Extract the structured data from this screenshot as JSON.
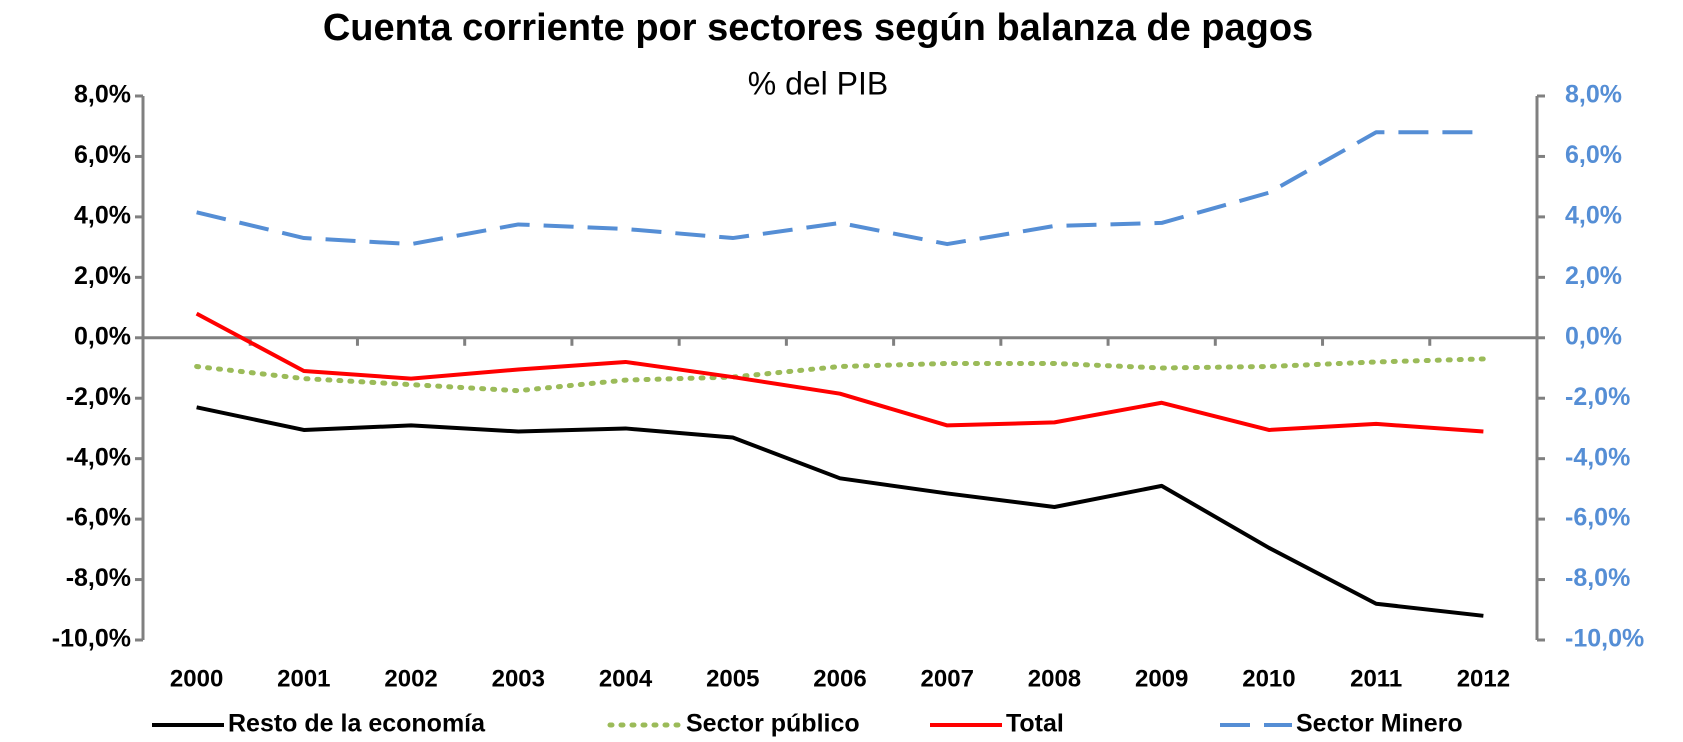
{
  "chart_data": {
    "type": "line",
    "title": "Cuenta corriente por sectores según balanza de pagos",
    "subtitle": "% del PIB",
    "categories": [
      "2000",
      "2001",
      "2002",
      "2003",
      "2004",
      "2005",
      "2006",
      "2007",
      "2008",
      "2009",
      "2010",
      "2011",
      "2012"
    ],
    "series": [
      {
        "name": "Resto de la economía",
        "color": "#000000",
        "dash": "solid",
        "values": [
          -2.3,
          -3.05,
          -2.9,
          -3.1,
          -3.0,
          -3.3,
          -4.65,
          -5.15,
          -5.6,
          -4.9,
          -6.95,
          -8.8,
          -9.2
        ]
      },
      {
        "name": "Sector público",
        "color": "#9BBB59",
        "dash": "dot",
        "values": [
          -0.95,
          -1.35,
          -1.55,
          -1.75,
          -1.4,
          -1.3,
          -0.95,
          -0.85,
          -0.85,
          -1.0,
          -0.95,
          -0.8,
          -0.7
        ]
      },
      {
        "name": "Total",
        "color": "#FF0000",
        "dash": "solid",
        "values": [
          0.8,
          -1.1,
          -1.35,
          -1.05,
          -0.8,
          -1.3,
          -1.85,
          -2.9,
          -2.8,
          -2.15,
          -3.05,
          -2.85,
          -3.1
        ]
      },
      {
        "name": "Sector Minero",
        "color": "#558ED5",
        "dash": "dash",
        "values": [
          4.15,
          3.3,
          3.1,
          3.75,
          3.6,
          3.3,
          3.8,
          3.1,
          3.7,
          3.8,
          4.8,
          6.8,
          6.8
        ]
      }
    ],
    "ylim": [
      -10,
      8
    ],
    "yticks": [
      {
        "value": -10,
        "label": "-10,0%"
      },
      {
        "value": -8,
        "label": "-8,0%"
      },
      {
        "value": -6,
        "label": "-6,0%"
      },
      {
        "value": -4,
        "label": "-4,0%"
      },
      {
        "value": -2,
        "label": "-2,0%"
      },
      {
        "value": 0,
        "label": "0,0%"
      },
      {
        "value": 2,
        "label": "2,0%"
      },
      {
        "value": 4,
        "label": "4,0%"
      },
      {
        "value": 6,
        "label": "6,0%"
      },
      {
        "value": 8,
        "label": "8,0%"
      }
    ],
    "y2lim": [
      -10,
      8
    ],
    "y2ticks": [
      {
        "value": -10,
        "label": "-10,0%"
      },
      {
        "value": -8,
        "label": "-8,0%"
      },
      {
        "value": -6,
        "label": "-6,0%"
      },
      {
        "value": -4,
        "label": "-4,0%"
      },
      {
        "value": -2,
        "label": "-2,0%"
      },
      {
        "value": 0,
        "label": "0,0%"
      },
      {
        "value": 2,
        "label": "2,0%"
      },
      {
        "value": 4,
        "label": "4,0%"
      },
      {
        "value": 6,
        "label": "6,0%"
      },
      {
        "value": 8,
        "label": "8,0%"
      }
    ],
    "y2color": "#558ED5",
    "legend": "bottom"
  }
}
